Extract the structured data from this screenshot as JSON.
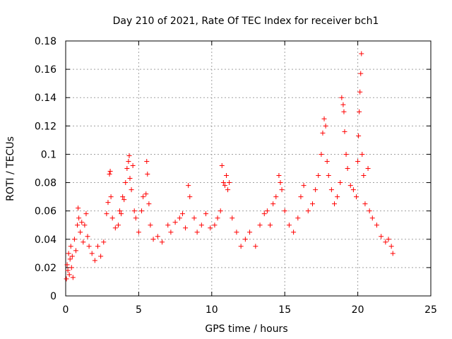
{
  "chart_data": {
    "type": "scatter",
    "title": "Day 210 of 2021, Rate Of TEC Index for receiver bch1",
    "xlabel": "GPS time / hours",
    "ylabel": "ROTI / TECUs",
    "xlim": [
      0,
      25
    ],
    "ylim": [
      0,
      0.18
    ],
    "x_ticks": [
      0,
      5,
      10,
      15,
      20,
      25
    ],
    "y_ticks": [
      0,
      0.02,
      0.04,
      0.06,
      0.08,
      0.1,
      0.12,
      0.14,
      0.16,
      0.18
    ],
    "x_tick_labels": [
      "0",
      "5",
      "10",
      "15",
      "20",
      "25"
    ],
    "y_tick_labels": [
      "0",
      "0.02",
      "0.04",
      "0.06",
      "0.08",
      "0.1",
      "0.12",
      "0.14",
      "0.16",
      "0.18"
    ],
    "grid": true,
    "marker": "+",
    "color": "#ff0000",
    "series": [
      {
        "name": "ROTI",
        "points": [
          [
            0.05,
            0.012
          ],
          [
            0.1,
            0.022
          ],
          [
            0.15,
            0.018
          ],
          [
            0.2,
            0.03
          ],
          [
            0.25,
            0.015
          ],
          [
            0.3,
            0.026
          ],
          [
            0.35,
            0.035
          ],
          [
            0.4,
            0.02
          ],
          [
            0.45,
            0.028
          ],
          [
            0.5,
            0.013
          ],
          [
            0.6,
            0.04
          ],
          [
            0.7,
            0.032
          ],
          [
            0.8,
            0.05
          ],
          [
            0.85,
            0.062
          ],
          [
            0.9,
            0.055
          ],
          [
            1.0,
            0.045
          ],
          [
            1.1,
            0.052
          ],
          [
            1.2,
            0.038
          ],
          [
            1.3,
            0.05
          ],
          [
            1.4,
            0.058
          ],
          [
            1.5,
            0.042
          ],
          [
            1.6,
            0.035
          ],
          [
            1.8,
            0.03
          ],
          [
            2.0,
            0.025
          ],
          [
            2.2,
            0.035
          ],
          [
            2.4,
            0.028
          ],
          [
            2.6,
            0.038
          ],
          [
            2.8,
            0.058
          ],
          [
            2.9,
            0.066
          ],
          [
            3.0,
            0.086
          ],
          [
            3.05,
            0.088
          ],
          [
            3.1,
            0.07
          ],
          [
            3.2,
            0.055
          ],
          [
            3.4,
            0.048
          ],
          [
            3.6,
            0.05
          ],
          [
            3.7,
            0.06
          ],
          [
            3.8,
            0.058
          ],
          [
            3.9,
            0.07
          ],
          [
            4.0,
            0.068
          ],
          [
            4.1,
            0.08
          ],
          [
            4.2,
            0.09
          ],
          [
            4.3,
            0.095
          ],
          [
            4.35,
            0.099
          ],
          [
            4.4,
            0.083
          ],
          [
            4.5,
            0.075
          ],
          [
            4.6,
            0.092
          ],
          [
            4.7,
            0.06
          ],
          [
            4.8,
            0.055
          ],
          [
            5.0,
            0.045
          ],
          [
            5.2,
            0.06
          ],
          [
            5.3,
            0.07
          ],
          [
            5.5,
            0.072
          ],
          [
            5.55,
            0.095
          ],
          [
            5.6,
            0.086
          ],
          [
            5.7,
            0.065
          ],
          [
            5.8,
            0.05
          ],
          [
            6.0,
            0.04
          ],
          [
            6.3,
            0.042
          ],
          [
            6.6,
            0.038
          ],
          [
            7.0,
            0.05
          ],
          [
            7.2,
            0.045
          ],
          [
            7.5,
            0.052
          ],
          [
            7.8,
            0.055
          ],
          [
            8.0,
            0.058
          ],
          [
            8.2,
            0.048
          ],
          [
            8.4,
            0.078
          ],
          [
            8.5,
            0.07
          ],
          [
            8.8,
            0.055
          ],
          [
            9.0,
            0.045
          ],
          [
            9.3,
            0.05
          ],
          [
            9.6,
            0.058
          ],
          [
            9.9,
            0.048
          ],
          [
            10.2,
            0.05
          ],
          [
            10.4,
            0.055
          ],
          [
            10.6,
            0.06
          ],
          [
            10.7,
            0.092
          ],
          [
            10.8,
            0.08
          ],
          [
            10.9,
            0.078
          ],
          [
            11.0,
            0.085
          ],
          [
            11.1,
            0.075
          ],
          [
            11.2,
            0.08
          ],
          [
            11.4,
            0.055
          ],
          [
            11.7,
            0.045
          ],
          [
            12.0,
            0.035
          ],
          [
            12.3,
            0.04
          ],
          [
            12.6,
            0.045
          ],
          [
            13.0,
            0.035
          ],
          [
            13.3,
            0.05
          ],
          [
            13.6,
            0.058
          ],
          [
            13.8,
            0.06
          ],
          [
            14.0,
            0.05
          ],
          [
            14.2,
            0.065
          ],
          [
            14.4,
            0.07
          ],
          [
            14.6,
            0.085
          ],
          [
            14.7,
            0.08
          ],
          [
            14.8,
            0.075
          ],
          [
            15.0,
            0.06
          ],
          [
            15.3,
            0.05
          ],
          [
            15.6,
            0.045
          ],
          [
            15.9,
            0.055
          ],
          [
            16.1,
            0.07
          ],
          [
            16.3,
            0.078
          ],
          [
            16.6,
            0.06
          ],
          [
            16.9,
            0.065
          ],
          [
            17.1,
            0.075
          ],
          [
            17.3,
            0.085
          ],
          [
            17.5,
            0.1
          ],
          [
            17.6,
            0.115
          ],
          [
            17.7,
            0.125
          ],
          [
            17.8,
            0.12
          ],
          [
            17.9,
            0.095
          ],
          [
            18.0,
            0.085
          ],
          [
            18.2,
            0.075
          ],
          [
            18.4,
            0.065
          ],
          [
            18.6,
            0.07
          ],
          [
            18.8,
            0.08
          ],
          [
            18.9,
            0.14
          ],
          [
            19.0,
            0.135
          ],
          [
            19.05,
            0.13
          ],
          [
            19.1,
            0.116
          ],
          [
            19.2,
            0.1
          ],
          [
            19.3,
            0.09
          ],
          [
            19.5,
            0.078
          ],
          [
            19.7,
            0.075
          ],
          [
            19.9,
            0.07
          ],
          [
            20.0,
            0.095
          ],
          [
            20.05,
            0.113
          ],
          [
            20.1,
            0.13
          ],
          [
            20.15,
            0.144
          ],
          [
            20.2,
            0.157
          ],
          [
            20.25,
            0.171
          ],
          [
            20.3,
            0.1
          ],
          [
            20.4,
            0.085
          ],
          [
            20.5,
            0.065
          ],
          [
            20.7,
            0.09
          ],
          [
            20.8,
            0.06
          ],
          [
            21.0,
            0.055
          ],
          [
            21.3,
            0.05
          ],
          [
            21.6,
            0.042
          ],
          [
            21.9,
            0.038
          ],
          [
            22.1,
            0.04
          ],
          [
            22.3,
            0.035
          ],
          [
            22.4,
            0.03
          ]
        ]
      }
    ]
  }
}
